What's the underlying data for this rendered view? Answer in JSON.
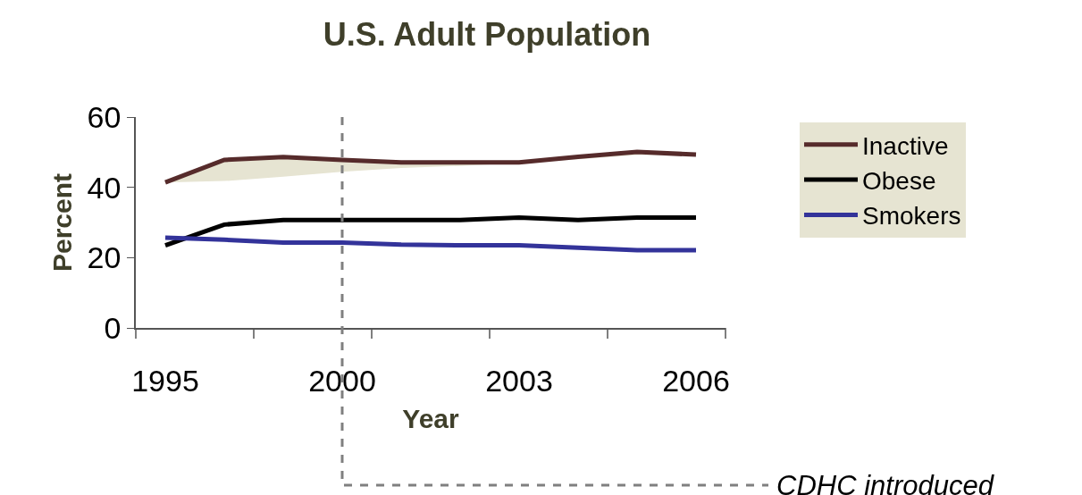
{
  "chart_data": {
    "type": "line",
    "title": "U.S. Adult Population",
    "xlabel": "Year",
    "ylabel": "Percent",
    "categories": [
      "1995",
      null,
      null,
      "2000",
      null,
      null,
      "2003",
      null,
      null,
      "2006"
    ],
    "ylim": [
      0,
      60
    ],
    "yticks": [
      0,
      20,
      40,
      60
    ],
    "series": [
      {
        "name": "Inactive",
        "color": "#562b2b",
        "values": [
          41.4,
          47.8,
          48.6,
          47.8,
          47.1,
          47.1,
          47.1,
          48.7,
          50.1,
          49.3
        ],
        "lower": [
          41.4,
          41.8,
          43.0,
          44.4,
          45.5,
          46.1,
          47.0,
          48.0,
          49.2,
          49.3
        ],
        "upper": [
          41.4,
          47.8,
          48.6,
          47.8,
          47.1,
          47.1,
          47.1,
          48.7,
          50.1,
          49.3
        ]
      },
      {
        "name": "Obese",
        "color": "#000000",
        "values": [
          23.5,
          29.4,
          30.7,
          30.7,
          30.7,
          30.7,
          31.4,
          30.7,
          31.4,
          31.4
        ]
      },
      {
        "name": "Smokers",
        "color": "#33339a",
        "values": [
          25.7,
          25.1,
          24.3,
          24.3,
          23.7,
          23.5,
          23.5,
          22.8,
          22.1,
          22.1
        ]
      }
    ],
    "ref_lines": [
      {
        "axis": "x",
        "value": "2000",
        "label": "CDHC introduced",
        "color": "#808080",
        "line_style": "dashed"
      }
    ],
    "legend": "right",
    "marker": "none",
    "line_style": "solid"
  }
}
